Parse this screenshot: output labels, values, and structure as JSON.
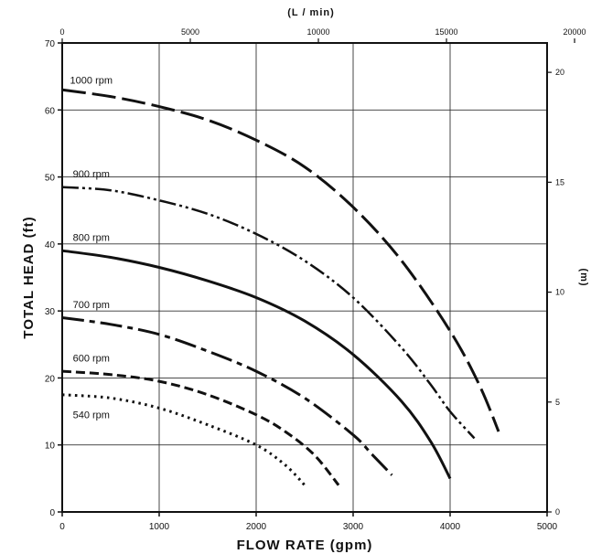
{
  "chart_data": {
    "type": "line",
    "xlabel": "FLOW RATE (gpm)",
    "ylabel": "TOTAL HEAD (ft)",
    "x2label": "(L / min)",
    "y2label": "(m)",
    "xlim": [
      0,
      5000
    ],
    "ylim": [
      0,
      70
    ],
    "x2lim": [
      0,
      18927
    ],
    "y2lim": [
      0,
      21.336
    ],
    "xticks": [
      0,
      1000,
      2000,
      3000,
      4000,
      5000
    ],
    "yticks": [
      0,
      10,
      20,
      30,
      40,
      50,
      60,
      70
    ],
    "x2ticks": [
      0,
      5000,
      10000,
      15000,
      20000
    ],
    "y2ticks": [
      0,
      5,
      10,
      15,
      20
    ],
    "xtick_labels": [
      "0",
      "1000",
      "2000",
      "3000",
      "4000",
      "5000"
    ],
    "ytick_labels": [
      "0",
      "10",
      "20",
      "30",
      "40",
      "50",
      "60",
      "70"
    ],
    "x2tick_labels": [
      "0",
      "5000",
      "10000",
      "15000",
      "20000"
    ],
    "y2tick_labels": [
      "0",
      "5",
      "10",
      "15",
      "20"
    ],
    "grid": true,
    "series": [
      {
        "name": "1000 rpm",
        "dash": "26,7",
        "width": 3,
        "x": [
          0,
          500,
          1000,
          1500,
          2000,
          2500,
          3000,
          3500,
          4000,
          4300,
          4500
        ],
        "y": [
          63,
          62,
          60.5,
          58.5,
          55.5,
          51.5,
          45.5,
          37.5,
          27,
          19,
          12
        ]
      },
      {
        "name": "900 rpm",
        "dash": "18,4,3,4,3,4",
        "width": 2.5,
        "x": [
          0,
          500,
          1000,
          1500,
          2000,
          2500,
          3000,
          3500,
          3800,
          4000,
          4250
        ],
        "y": [
          48.5,
          48,
          46.5,
          44.5,
          41.5,
          37.5,
          32,
          24.5,
          19,
          15,
          11
        ]
      },
      {
        "name": "800 rpm",
        "dash": "",
        "width": 3,
        "x": [
          0,
          500,
          1000,
          1500,
          2000,
          2500,
          3000,
          3500,
          3800,
          4000
        ],
        "y": [
          39,
          38,
          36.5,
          34.5,
          32,
          28.5,
          23.5,
          16.5,
          10.5,
          5
        ]
      },
      {
        "name": "700 rpm",
        "dash": "24,6,6,6",
        "width": 3,
        "x": [
          0,
          500,
          1000,
          1500,
          2000,
          2500,
          3000,
          3200,
          3400
        ],
        "y": [
          29,
          28,
          26.5,
          24,
          21,
          17,
          11.5,
          8.5,
          5.5
        ]
      },
      {
        "name": "600 rpm",
        "dash": "10,5",
        "width": 3,
        "x": [
          0,
          500,
          1000,
          1500,
          2000,
          2300,
          2600,
          2850
        ],
        "y": [
          21,
          20.5,
          19.5,
          17.5,
          14.5,
          12,
          8.5,
          4
        ]
      },
      {
        "name": "540 rpm",
        "dash": "2.5,4.5",
        "width": 3,
        "x": [
          0,
          500,
          1000,
          1500,
          2000,
          2300,
          2500
        ],
        "y": [
          17.5,
          17,
          15.5,
          13,
          10,
          7,
          4
        ]
      }
    ],
    "label_anchor": [
      {
        "name": "1000 rpm",
        "x": 300,
        "y": 63
      },
      {
        "name": "900 rpm",
        "x": 300,
        "y": 49
      },
      {
        "name": "800 rpm",
        "x": 300,
        "y": 39.5
      },
      {
        "name": "700 rpm",
        "x": 300,
        "y": 29.5
      },
      {
        "name": "600 rpm",
        "x": 300,
        "y": 21.5
      },
      {
        "name": "540 rpm",
        "x": 300,
        "y": 13
      }
    ]
  }
}
